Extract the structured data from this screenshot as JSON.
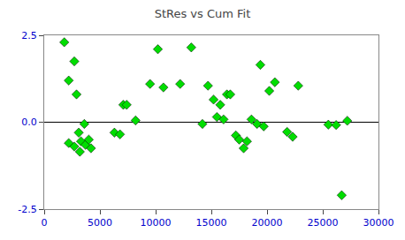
{
  "chart_data": {
    "type": "scatter",
    "title": "StRes vs Cum Fit",
    "x": [
      1800,
      2200,
      2700,
      2900,
      3100,
      3300,
      3600,
      2200,
      2700,
      3200,
      3700,
      4000,
      4200,
      6300,
      6800,
      7100,
      7400,
      8200,
      9500,
      10200,
      10700,
      12200,
      13200,
      14200,
      14700,
      15200,
      15500,
      15800,
      16100,
      16400,
      16700,
      17200,
      17500,
      17900,
      18200,
      18600,
      19100,
      19400,
      19700,
      20200,
      20700,
      21800,
      22300,
      22800,
      25500,
      26200,
      26700,
      27200
    ],
    "values": [
      2.3,
      1.2,
      1.75,
      0.8,
      -0.3,
      -0.55,
      -0.05,
      -0.6,
      -0.7,
      -0.85,
      -0.65,
      -0.5,
      -0.75,
      -0.3,
      -0.35,
      0.5,
      0.5,
      0.05,
      1.1,
      2.1,
      1.0,
      1.1,
      2.15,
      -0.05,
      1.05,
      0.65,
      0.15,
      0.5,
      0.08,
      0.8,
      0.8,
      -0.38,
      -0.5,
      -0.75,
      -0.55,
      0.08,
      -0.05,
      1.65,
      -0.12,
      0.9,
      1.15,
      -0.28,
      -0.42,
      1.05,
      -0.07,
      -0.08,
      -2.1,
      0.04
    ],
    "color": "#00dd00",
    "marker": "diamond",
    "hline_y": 0,
    "xlim": [
      0,
      30000
    ],
    "xticks": [
      0,
      5000,
      10000,
      15000,
      20000,
      25000,
      30000
    ],
    "ylim": [
      -2.5,
      2.5
    ],
    "yticks": [
      -2.5,
      {
        "value": 0,
        "label": "0.0"
      },
      2.5
    ],
    "grid": false
  }
}
